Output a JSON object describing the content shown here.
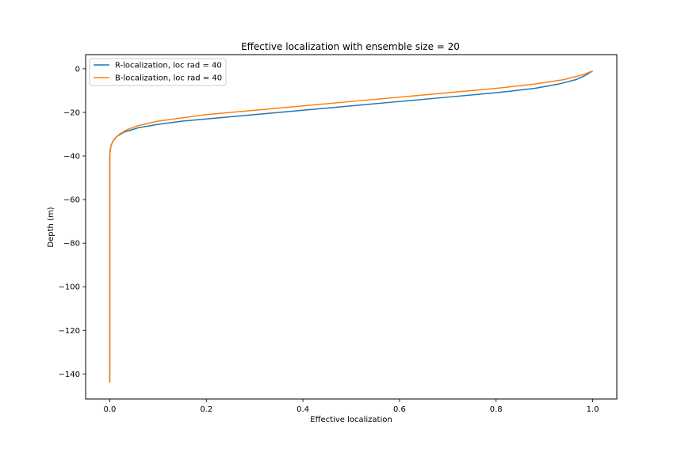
{
  "chart_data": {
    "type": "line",
    "title": "Effective localization with ensemble size = 20",
    "xlabel": "Effective localization",
    "ylabel": "Depth (m)",
    "xlim": [
      -0.05,
      1.05
    ],
    "ylim": [
      -151.5,
      6.5
    ],
    "xticks": [
      0.0,
      0.2,
      0.4,
      0.6,
      0.8,
      1.0
    ],
    "xtick_labels": [
      "0.0",
      "0.2",
      "0.4",
      "0.6",
      "0.8",
      "1.0"
    ],
    "yticks": [
      0,
      -20,
      -40,
      -60,
      -80,
      -100,
      -120,
      -140
    ],
    "ytick_labels": [
      "0",
      "−20",
      "−40",
      "−60",
      "−80",
      "−100",
      "−120",
      "−140"
    ],
    "grid": false,
    "legend": "upper left",
    "series": [
      {
        "name": "R-localization, loc rad = 40",
        "color": "#1f77b4",
        "x": [
          1.0,
          0.985,
          0.965,
          0.93,
          0.88,
          0.8,
          0.7,
          0.6,
          0.5,
          0.4,
          0.3,
          0.2,
          0.15,
          0.1,
          0.06,
          0.03,
          0.015,
          0.007,
          0.003,
          0.001,
          0.0,
          0.0,
          0.0
        ],
        "y": [
          -1,
          -3,
          -5,
          -7,
          -9,
          -11,
          -13,
          -15,
          -17,
          -19,
          -21,
          -23,
          -24,
          -25.5,
          -27,
          -29,
          -31,
          -33,
          -35,
          -37,
          -40,
          -80,
          -144
        ]
      },
      {
        "name": "B-localization, loc rad = 40",
        "color": "#ff7f0e",
        "x": [
          1.0,
          0.975,
          0.94,
          0.88,
          0.8,
          0.7,
          0.6,
          0.5,
          0.4,
          0.3,
          0.2,
          0.15,
          0.1,
          0.06,
          0.035,
          0.02,
          0.01,
          0.005,
          0.002,
          0.001,
          0.0,
          0.0,
          0.0
        ],
        "y": [
          -1,
          -3,
          -5,
          -7,
          -9,
          -11,
          -13,
          -15,
          -17,
          -19,
          -21,
          -22.5,
          -24,
          -26,
          -28,
          -30,
          -32,
          -34,
          -36,
          -38,
          -40,
          -80,
          -144
        ]
      }
    ]
  }
}
